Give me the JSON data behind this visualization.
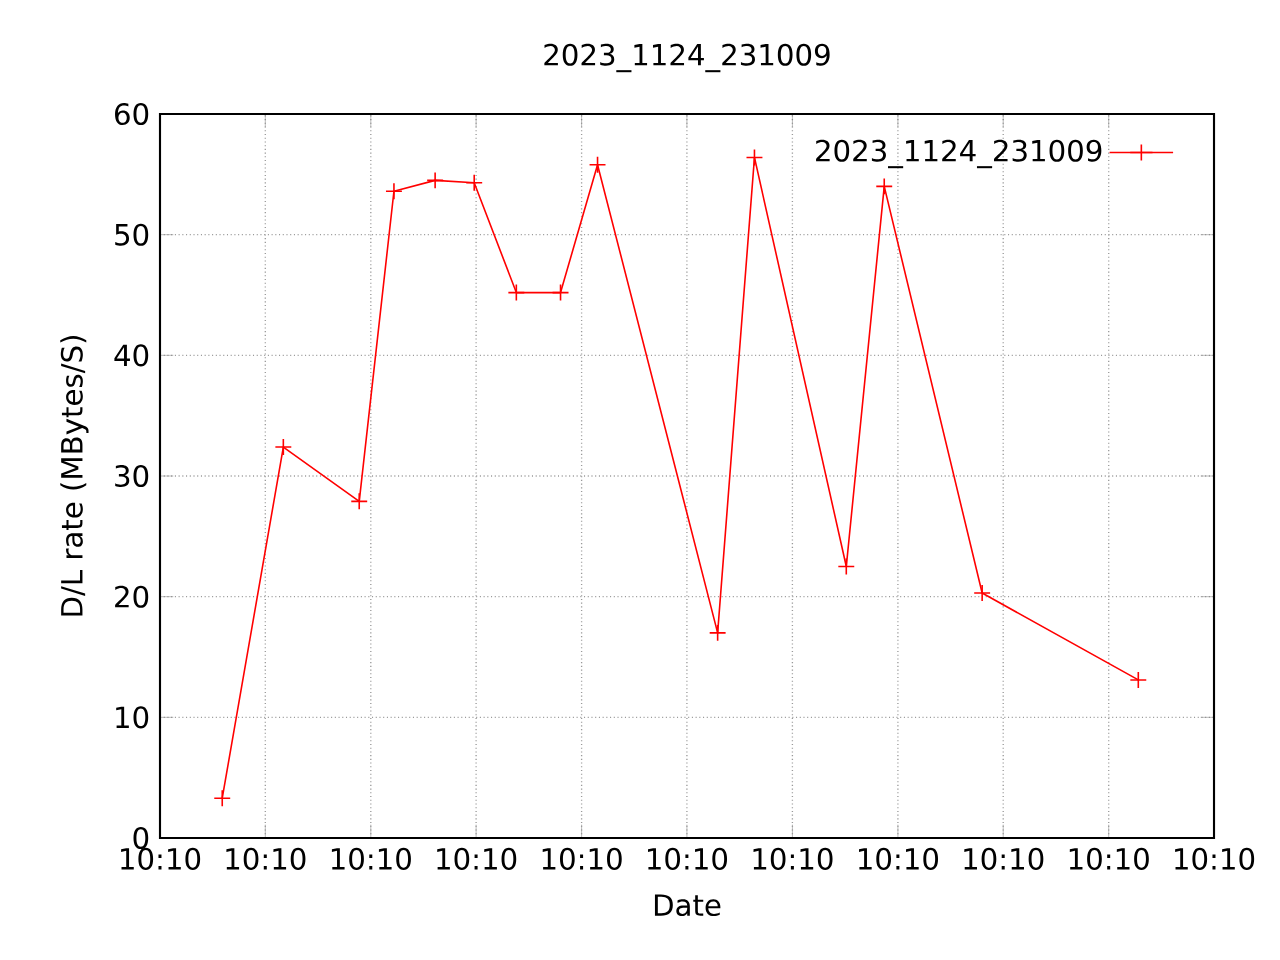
{
  "chart_data": {
    "type": "line",
    "title": "2023_1124_231009",
    "xlabel": "Date",
    "ylabel": "D/L rate (MBytes/S)",
    "x": [
      10.166995,
      10.167317,
      10.167717,
      10.1679,
      10.168117,
      10.168323,
      10.168545,
      10.168778,
      10.168973,
      10.169606,
      10.1698,
      10.170284,
      10.170484,
      10.171,
      10.171823
    ],
    "series": [
      {
        "name": "2023_1124_231009",
        "color": "#ff0000",
        "values": [
          3.3,
          32.4,
          27.9,
          53.6,
          54.5,
          54.3,
          45.2,
          45.2,
          55.8,
          17.0,
          56.4,
          22.5,
          54.0,
          20.3,
          13.1
        ]
      }
    ],
    "xlim": [
      10.166667,
      10.172222
    ],
    "xticks": [
      {
        "value": 10.166667,
        "label": "10:10"
      },
      {
        "value": 10.167222,
        "label": "10:10"
      },
      {
        "value": 10.167778,
        "label": "10:10"
      },
      {
        "value": 10.168333,
        "label": "10:10"
      },
      {
        "value": 10.168889,
        "label": "10:10"
      },
      {
        "value": 10.169444,
        "label": "10:10"
      },
      {
        "value": 10.17,
        "label": "10:10"
      },
      {
        "value": 10.170556,
        "label": "10:10"
      },
      {
        "value": 10.171111,
        "label": "10:10"
      },
      {
        "value": 10.171667,
        "label": "10:10"
      },
      {
        "value": 10.172222,
        "label": "10:10"
      }
    ],
    "ylim": [
      0,
      60
    ],
    "yticks": [
      0,
      10,
      20,
      30,
      40,
      50,
      60
    ],
    "grid": true,
    "legend": "top right",
    "marker": "cross",
    "line_style": "solid"
  }
}
